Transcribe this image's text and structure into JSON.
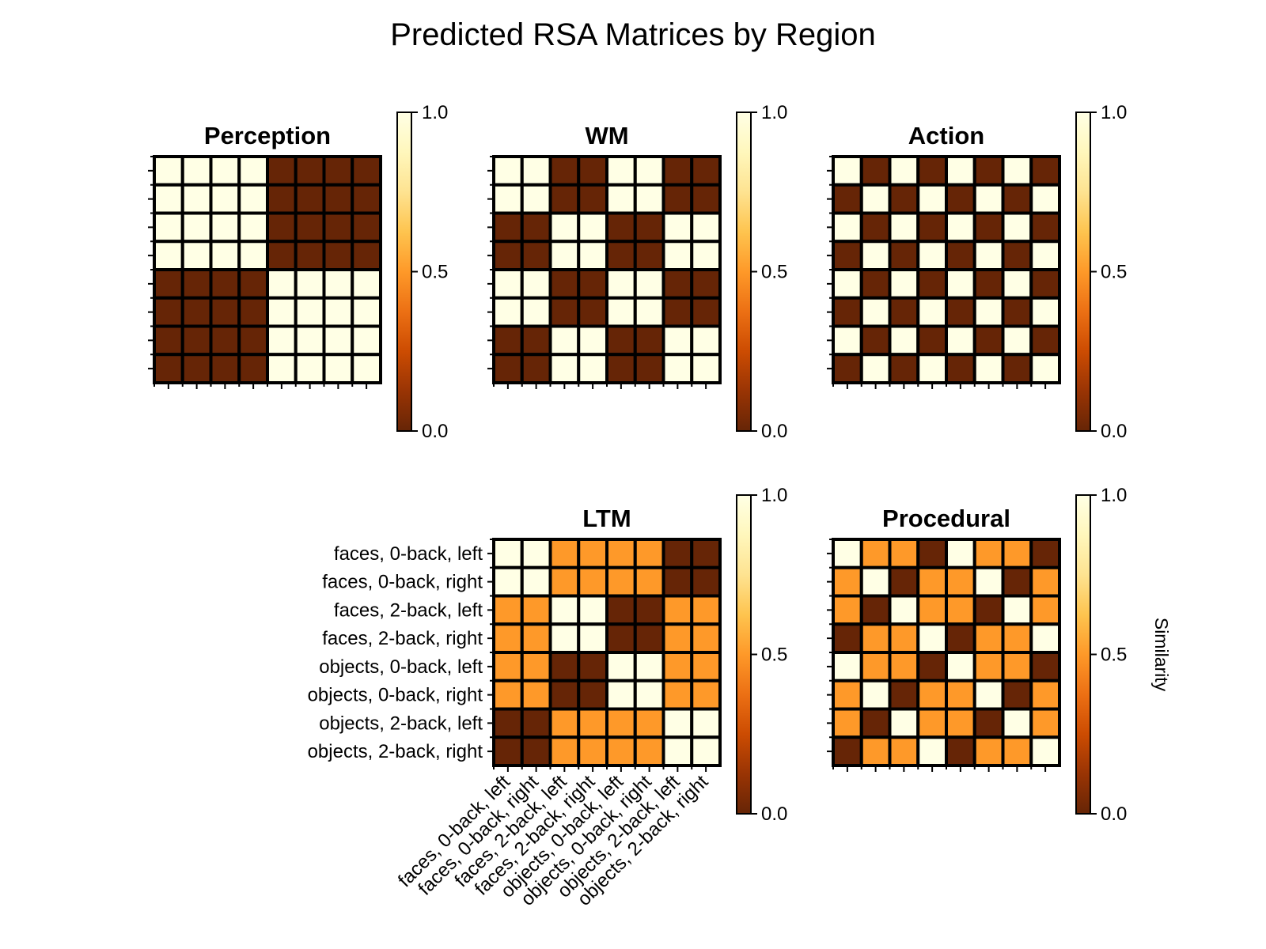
{
  "chart_data": {
    "type": "heatmap",
    "title": "Predicted RSA Matrices by Region",
    "labels": [
      "faces, 0-back, left",
      "faces, 0-back, right",
      "faces, 2-back, left",
      "faces, 2-back, right",
      "objects, 0-back, left",
      "objects, 0-back, right",
      "objects, 2-back, left",
      "objects, 2-back, right"
    ],
    "colormap": "YlOrBr_r",
    "colormap_stops": [
      "#662506",
      "#993404",
      "#cc4c02",
      "#ec7014",
      "#fe9929",
      "#fec44f",
      "#fee391",
      "#fff7bc",
      "#ffffe5"
    ],
    "cell_border_color": "#000000",
    "vmin": 0.0,
    "vmax": 1.0,
    "colorbar_ticks": [
      "0.0",
      "0.5",
      "1.0"
    ],
    "colorbar_label": "Similarity",
    "panels": [
      {
        "title": "Perception",
        "matrix": [
          [
            1,
            1,
            1,
            1,
            0,
            0,
            0,
            0
          ],
          [
            1,
            1,
            1,
            1,
            0,
            0,
            0,
            0
          ],
          [
            1,
            1,
            1,
            1,
            0,
            0,
            0,
            0
          ],
          [
            1,
            1,
            1,
            1,
            0,
            0,
            0,
            0
          ],
          [
            0,
            0,
            0,
            0,
            1,
            1,
            1,
            1
          ],
          [
            0,
            0,
            0,
            0,
            1,
            1,
            1,
            1
          ],
          [
            0,
            0,
            0,
            0,
            1,
            1,
            1,
            1
          ],
          [
            0,
            0,
            0,
            0,
            1,
            1,
            1,
            1
          ]
        ]
      },
      {
        "title": "WM",
        "matrix": [
          [
            1,
            1,
            0,
            0,
            1,
            1,
            0,
            0
          ],
          [
            1,
            1,
            0,
            0,
            1,
            1,
            0,
            0
          ],
          [
            0,
            0,
            1,
            1,
            0,
            0,
            1,
            1
          ],
          [
            0,
            0,
            1,
            1,
            0,
            0,
            1,
            1
          ],
          [
            1,
            1,
            0,
            0,
            1,
            1,
            0,
            0
          ],
          [
            1,
            1,
            0,
            0,
            1,
            1,
            0,
            0
          ],
          [
            0,
            0,
            1,
            1,
            0,
            0,
            1,
            1
          ],
          [
            0,
            0,
            1,
            1,
            0,
            0,
            1,
            1
          ]
        ]
      },
      {
        "title": "Action",
        "matrix": [
          [
            1,
            0,
            1,
            0,
            1,
            0,
            1,
            0
          ],
          [
            0,
            1,
            0,
            1,
            0,
            1,
            0,
            1
          ],
          [
            1,
            0,
            1,
            0,
            1,
            0,
            1,
            0
          ],
          [
            0,
            1,
            0,
            1,
            0,
            1,
            0,
            1
          ],
          [
            1,
            0,
            1,
            0,
            1,
            0,
            1,
            0
          ],
          [
            0,
            1,
            0,
            1,
            0,
            1,
            0,
            1
          ],
          [
            1,
            0,
            1,
            0,
            1,
            0,
            1,
            0
          ],
          [
            0,
            1,
            0,
            1,
            0,
            1,
            0,
            1
          ]
        ]
      },
      {
        "title": "LTM",
        "matrix": [
          [
            1,
            1,
            0.5,
            0.5,
            0.5,
            0.5,
            0,
            0
          ],
          [
            1,
            1,
            0.5,
            0.5,
            0.5,
            0.5,
            0,
            0
          ],
          [
            0.5,
            0.5,
            1,
            1,
            0,
            0,
            0.5,
            0.5
          ],
          [
            0.5,
            0.5,
            1,
            1,
            0,
            0,
            0.5,
            0.5
          ],
          [
            0.5,
            0.5,
            0,
            0,
            1,
            1,
            0.5,
            0.5
          ],
          [
            0.5,
            0.5,
            0,
            0,
            1,
            1,
            0.5,
            0.5
          ],
          [
            0,
            0,
            0.5,
            0.5,
            0.5,
            0.5,
            1,
            1
          ],
          [
            0,
            0,
            0.5,
            0.5,
            0.5,
            0.5,
            1,
            1
          ]
        ]
      },
      {
        "title": "Procedural",
        "matrix": [
          [
            1,
            0.5,
            0.5,
            0,
            1,
            0.5,
            0.5,
            0
          ],
          [
            0.5,
            1,
            0,
            0.5,
            0.5,
            1,
            0,
            0.5
          ],
          [
            0.5,
            0,
            1,
            0.5,
            0.5,
            0,
            1,
            0.5
          ],
          [
            0,
            0.5,
            0.5,
            1,
            0,
            0.5,
            0.5,
            1
          ],
          [
            1,
            0.5,
            0.5,
            0,
            1,
            0.5,
            0.5,
            0
          ],
          [
            0.5,
            1,
            0,
            0.5,
            0.5,
            1,
            0,
            0.5
          ],
          [
            0.5,
            0,
            1,
            0.5,
            0.5,
            0,
            1,
            0.5
          ],
          [
            0,
            0.5,
            0.5,
            1,
            0,
            0.5,
            0.5,
            1
          ]
        ]
      }
    ]
  }
}
